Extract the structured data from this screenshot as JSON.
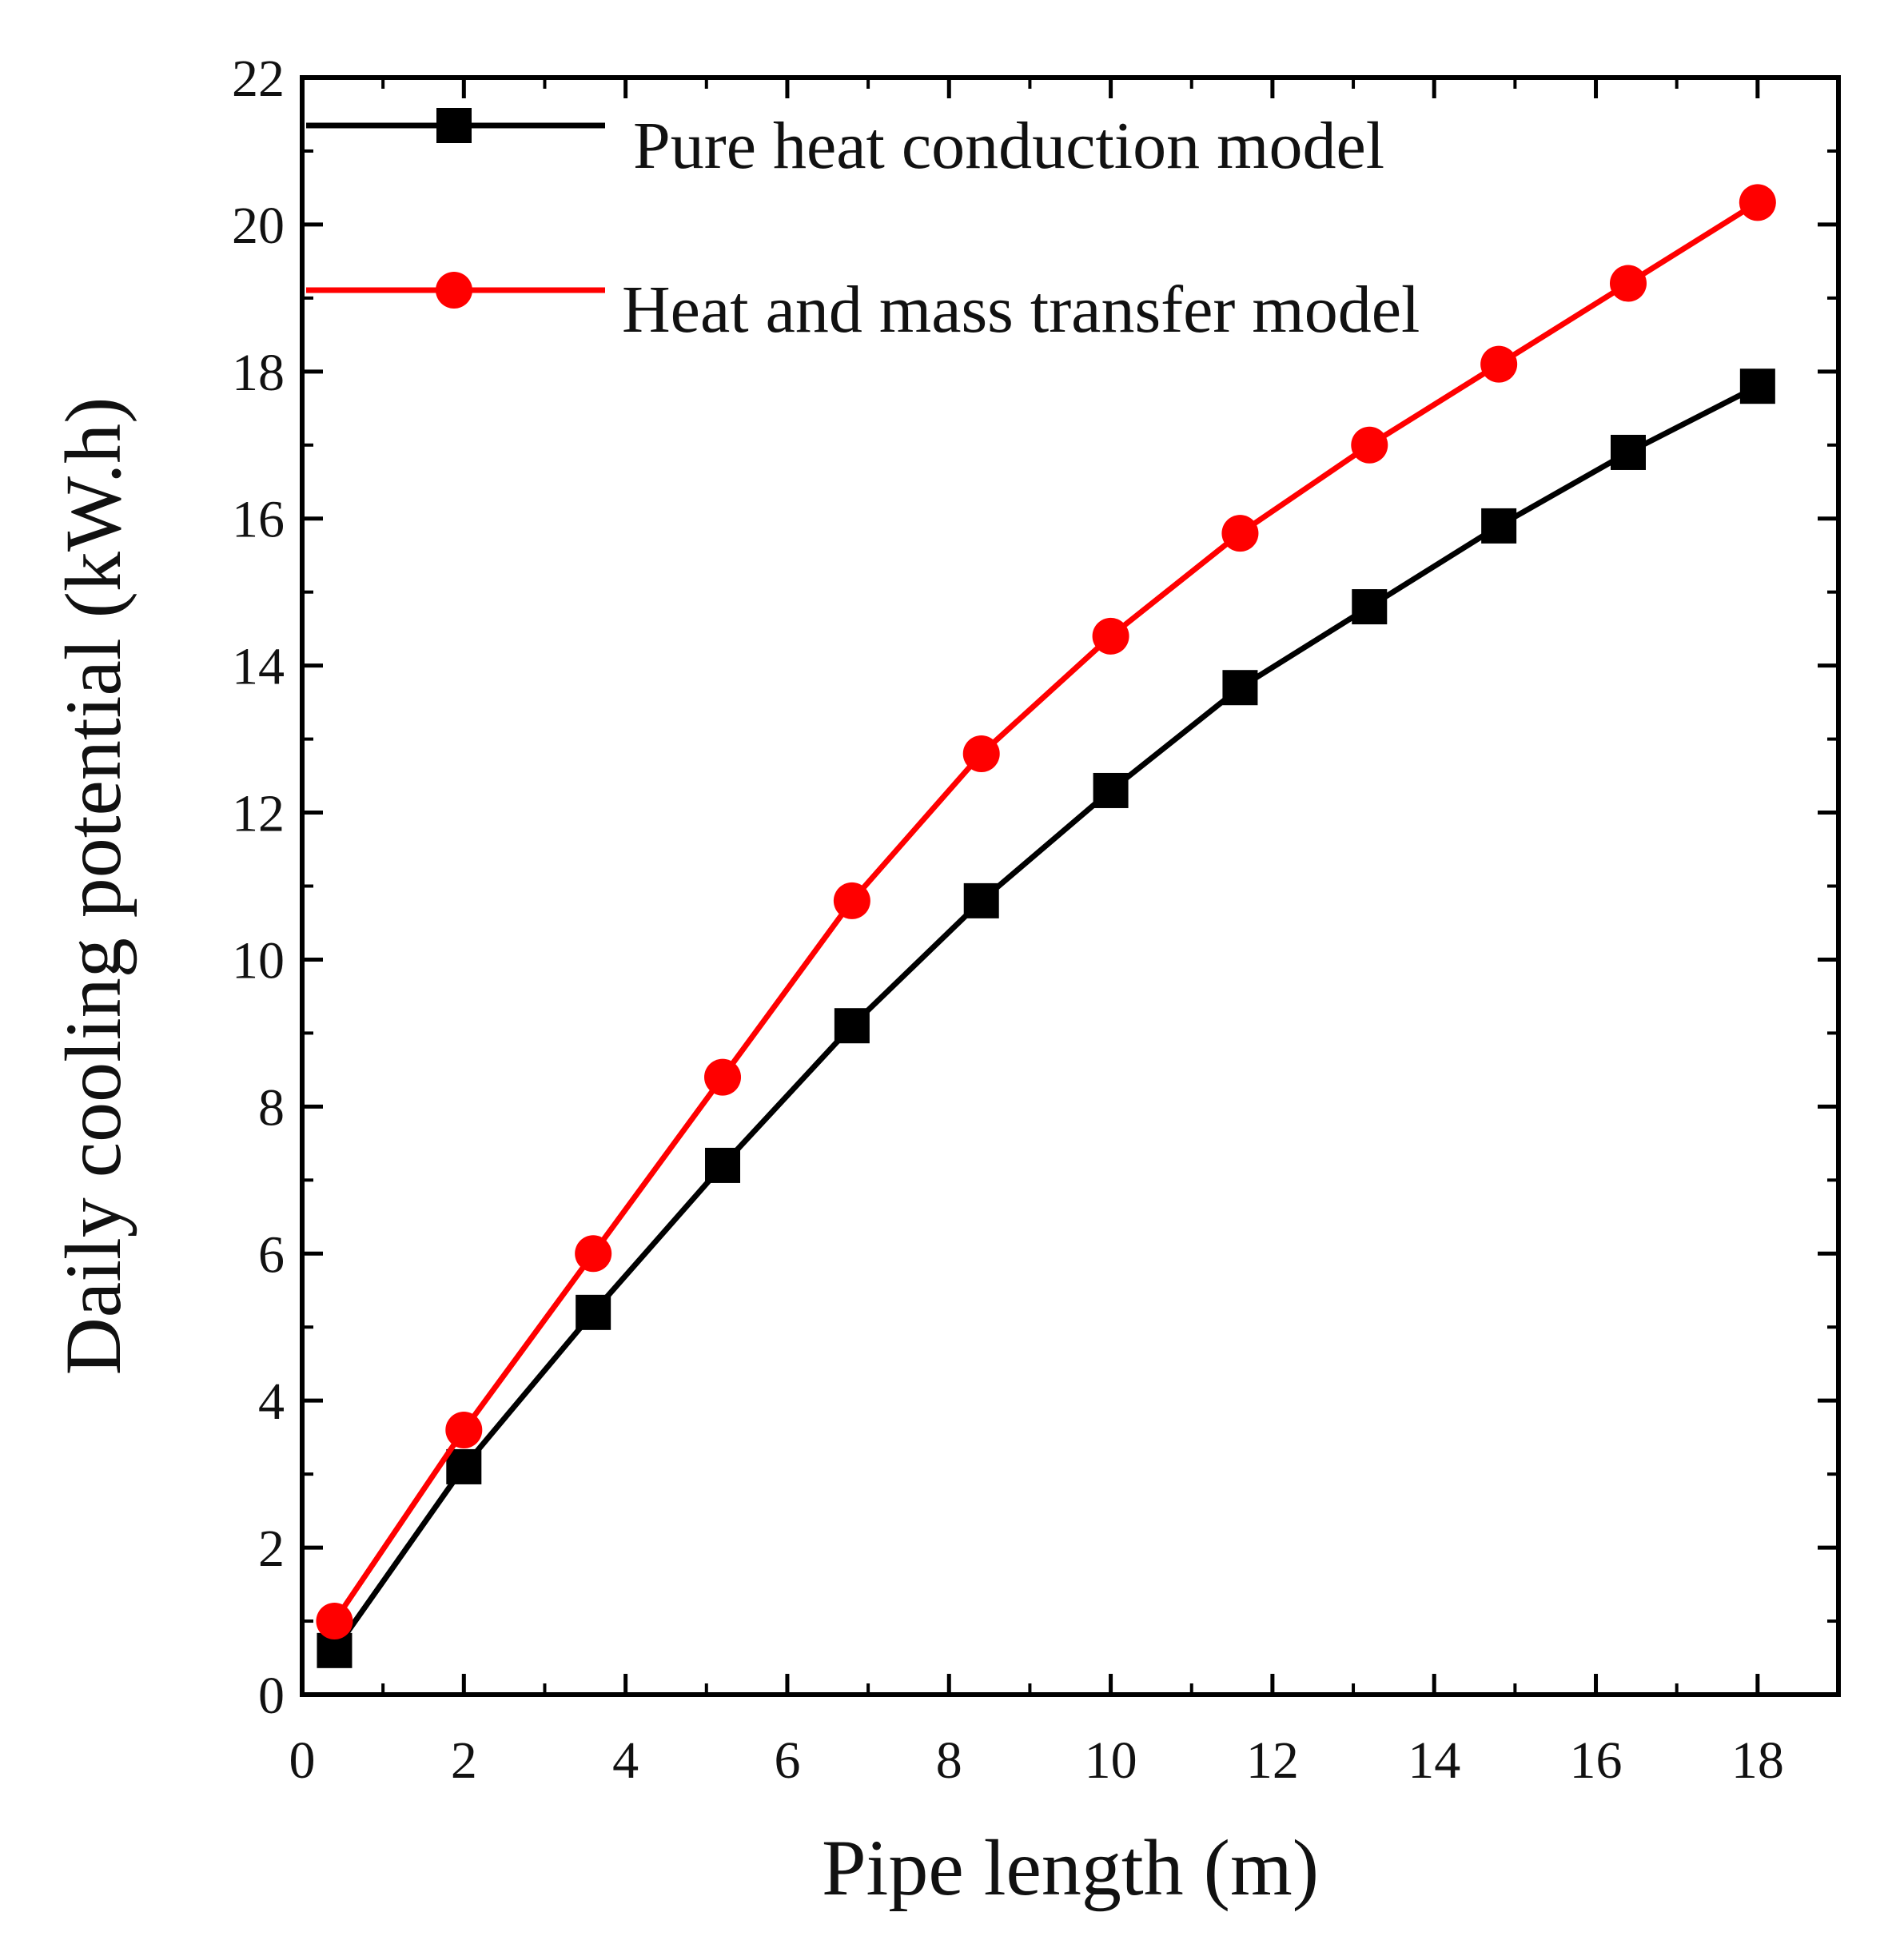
{
  "chart_data": {
    "type": "line",
    "title": "",
    "xlabel": "Pipe length (m)",
    "ylabel": "Daily cooling potential (kW.h)",
    "xlim": [
      0,
      19
    ],
    "ylim": [
      0,
      22
    ],
    "xticks": [
      "0",
      "2",
      "4",
      "6",
      "8",
      "10",
      "12",
      "14",
      "16",
      "18"
    ],
    "yticks": [
      "0",
      "2",
      "4",
      "6",
      "8",
      "10",
      "12",
      "14",
      "16",
      "18",
      "20",
      "22"
    ],
    "x": [
      0.4,
      2.0,
      3.6,
      5.2,
      6.8,
      8.4,
      10.0,
      11.6,
      13.2,
      14.8,
      16.4,
      18.0
    ],
    "legend_position": "top-left",
    "series": [
      {
        "name": "Pure heat conduction model",
        "color": "#000000",
        "marker": "square",
        "values": [
          0.6,
          3.1,
          5.2,
          7.2,
          9.1,
          10.8,
          12.3,
          13.7,
          14.8,
          15.9,
          16.9,
          17.8
        ]
      },
      {
        "name": "Heat and mass transfer model",
        "color": "#ff0000",
        "marker": "circle",
        "values": [
          1.0,
          3.6,
          6.0,
          8.4,
          10.8,
          12.8,
          14.4,
          15.8,
          17.0,
          18.1,
          19.2,
          20.3
        ]
      }
    ]
  }
}
